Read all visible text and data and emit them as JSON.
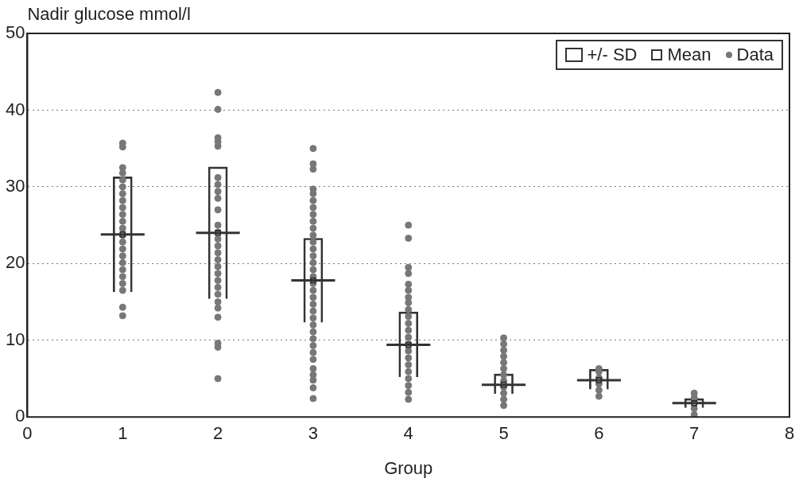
{
  "chart_data": {
    "ylabel": "Nadir glucose mmol/l",
    "xlabel": "Group",
    "type": "scatter",
    "xlim": [
      0,
      8
    ],
    "xticks": [
      0,
      1,
      2,
      3,
      4,
      5,
      6,
      7,
      8
    ],
    "ylim": [
      0,
      50
    ],
    "yticks": [
      0,
      10,
      20,
      30,
      40,
      50
    ],
    "grid": "y",
    "legend": "top right",
    "series": [
      {
        "name": "+/- SD",
        "type": "bar",
        "color": "#333333",
        "x": [
          1,
          2,
          3,
          4,
          5,
          6,
          7
        ],
        "base": [
          16.3,
          15.4,
          12.3,
          5.2,
          3.0,
          3.6,
          1.2
        ],
        "values": [
          15.0,
          17.2,
          11.0,
          8.5,
          2.6,
          2.6,
          1.2
        ]
      },
      {
        "name": "Mean",
        "type": "scatter",
        "marker": "square",
        "color": "#333333",
        "x": [
          1,
          2,
          3,
          4,
          5,
          6,
          7
        ],
        "values": [
          23.8,
          24.0,
          17.8,
          9.4,
          4.2,
          4.8,
          1.8
        ],
        "xerrors": [
          0.23,
          0.23,
          0.23,
          0.23,
          0.23,
          0.23,
          0.23
        ]
      },
      {
        "name": "Data",
        "marker": "circle",
        "color": "#777777",
        "x": [
          1,
          1,
          1,
          1,
          1,
          1,
          1,
          1,
          1,
          1,
          1,
          1,
          1,
          1,
          1,
          1,
          1,
          1,
          1,
          1,
          1,
          1,
          1,
          2,
          2,
          2,
          2,
          2,
          2,
          2,
          2,
          2,
          2,
          2,
          2,
          2,
          2,
          2,
          2,
          2,
          2,
          2,
          2,
          2,
          2,
          2,
          2,
          2,
          2,
          2,
          3,
          3,
          3,
          3,
          3,
          3,
          3,
          3,
          3,
          3,
          3,
          3,
          3,
          3,
          3,
          3,
          3,
          3,
          3,
          3,
          3,
          3,
          3,
          3,
          3,
          3,
          3,
          3,
          3,
          3,
          3,
          3,
          3,
          3,
          4,
          4,
          4,
          4,
          4,
          4,
          4,
          4,
          4,
          4,
          4,
          4,
          4,
          4,
          4,
          4,
          4,
          4,
          4,
          4,
          4,
          4,
          5,
          5,
          5,
          5,
          5,
          5,
          5,
          5,
          5,
          5,
          5,
          5,
          6,
          6,
          6,
          6,
          6,
          6,
          7,
          7,
          7,
          7,
          7
        ],
        "values": [
          13.2,
          14.3,
          16.5,
          17.4,
          18.3,
          19.2,
          20.1,
          21.0,
          21.9,
          22.8,
          23.7,
          24.6,
          25.5,
          26.4,
          27.3,
          28.2,
          29.1,
          30.0,
          30.9,
          31.8,
          32.5,
          35.2,
          35.7,
          5.0,
          9.1,
          9.6,
          13.0,
          14.2,
          15.0,
          16.0,
          16.9,
          17.8,
          18.7,
          19.6,
          20.5,
          21.4,
          22.3,
          23.2,
          24.1,
          25.0,
          27.0,
          28.5,
          29.4,
          30.3,
          31.2,
          35.3,
          35.9,
          36.4,
          40.1,
          42.3,
          2.4,
          3.8,
          4.8,
          5.5,
          6.3,
          7.5,
          8.4,
          9.3,
          10.2,
          11.1,
          12.0,
          12.9,
          13.8,
          14.7,
          15.6,
          16.5,
          17.4,
          18.3,
          19.2,
          20.1,
          21.0,
          21.9,
          22.8,
          23.7,
          24.6,
          25.5,
          26.4,
          27.3,
          28.2,
          29.1,
          29.7,
          32.3,
          33.0,
          35.0,
          2.3,
          3.2,
          4.1,
          5.0,
          5.9,
          6.8,
          7.7,
          8.6,
          9.5,
          10.4,
          11.3,
          12.2,
          13.1,
          14.0,
          14.9,
          15.6,
          16.5,
          17.3,
          18.7,
          19.5,
          23.3,
          25.0,
          1.5,
          2.3,
          3.1,
          3.9,
          4.7,
          5.5,
          6.3,
          7.1,
          7.9,
          8.7,
          9.5,
          10.3,
          2.7,
          3.5,
          4.3,
          5.1,
          5.9,
          6.3,
          0.3,
          1.1,
          1.9,
          2.5,
          3.1
        ]
      }
    ]
  }
}
